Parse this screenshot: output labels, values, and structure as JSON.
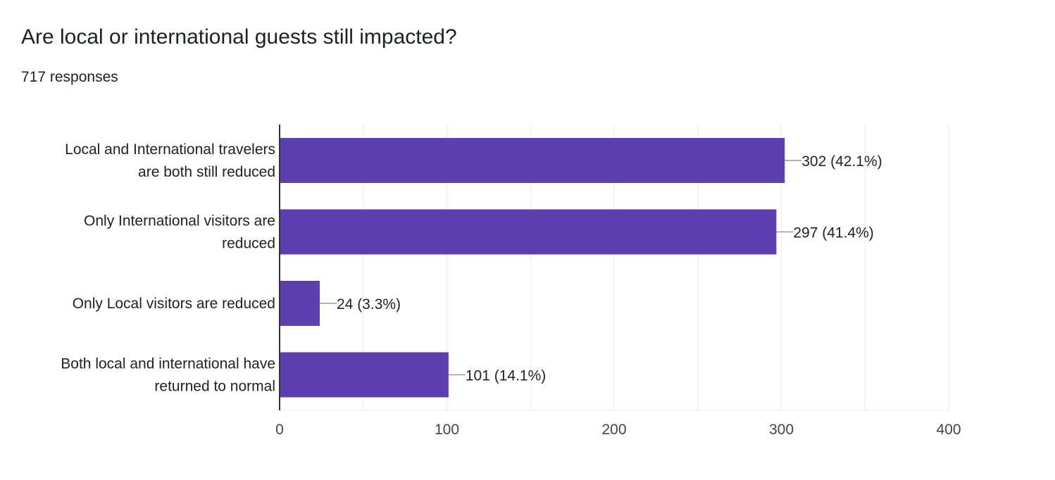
{
  "header": {
    "title": "Are local or international guests still impacted?",
    "responses": "717 responses"
  },
  "colors": {
    "bar": "#5e3faf",
    "grid": "#e8e8e8",
    "axis": "#333333",
    "leader": "#999999"
  },
  "chart_data": {
    "type": "bar",
    "orientation": "horizontal",
    "title": "Are local or international guests still impacted?",
    "subtitle": "717 responses",
    "categories": [
      [
        "Local and International travelers",
        "are both still reduced"
      ],
      [
        "Only International visitors are",
        "reduced"
      ],
      [
        "Only Local visitors are reduced"
      ],
      [
        "Both local and international have",
        "returned to normal"
      ]
    ],
    "values": [
      302,
      297,
      24,
      101
    ],
    "data_labels": [
      "302 (42.1%)",
      "297 (41.4%)",
      "24 (3.3%)",
      "101 (14.1%)"
    ],
    "xlim": [
      0,
      400
    ],
    "xticks": [
      0,
      100,
      200,
      300,
      400
    ],
    "grid": true,
    "legend": "none"
  }
}
